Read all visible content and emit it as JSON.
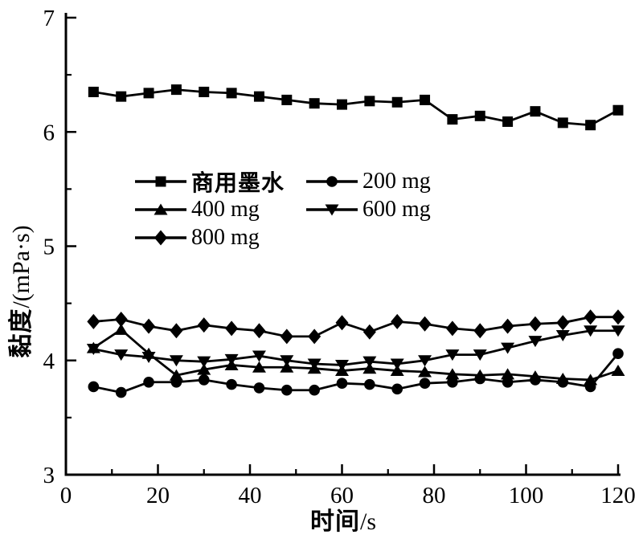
{
  "chart_data": {
    "type": "line",
    "xlabel": "时间/s",
    "ylabel": "黏度/(mPa·s)",
    "xlabel_parts": {
      "cjk": "时间",
      "rest": "/s"
    },
    "ylabel_parts": {
      "cjk": "黏度",
      "rest": "/(mPa·s)"
    },
    "xlim": [
      0,
      120
    ],
    "ylim": [
      3,
      7
    ],
    "x_ticks": [
      0,
      20,
      40,
      60,
      80,
      100,
      120
    ],
    "y_ticks": [
      3,
      4,
      5,
      6,
      7
    ],
    "x_minor_ticks": [
      10,
      30,
      50,
      70,
      90,
      110
    ],
    "y_minor_ticks": [
      3.5,
      4.5,
      5.5,
      6.5
    ],
    "grid": "off",
    "legend_position": "inside-upper-left",
    "colors": {
      "line": "#000000",
      "background": "#ffffff"
    },
    "x": [
      6,
      12,
      18,
      24,
      30,
      36,
      42,
      48,
      54,
      60,
      66,
      72,
      78,
      84,
      90,
      96,
      102,
      108,
      114,
      120
    ],
    "series": [
      {
        "name": "商用墨水",
        "marker": "square",
        "values": [
          6.35,
          6.31,
          6.34,
          6.37,
          6.35,
          6.34,
          6.31,
          6.28,
          6.25,
          6.24,
          6.27,
          6.26,
          6.28,
          6.11,
          6.14,
          6.09,
          6.18,
          6.08,
          6.06,
          6.19
        ]
      },
      {
        "name": "200 mg",
        "marker": "circle",
        "values": [
          3.77,
          3.72,
          3.81,
          3.81,
          3.83,
          3.79,
          3.76,
          3.74,
          3.74,
          3.8,
          3.79,
          3.75,
          3.8,
          3.81,
          3.84,
          3.81,
          3.83,
          3.81,
          3.77,
          4.06
        ]
      },
      {
        "name": "400 mg",
        "marker": "triangle-up",
        "values": [
          4.11,
          4.27,
          4.06,
          3.87,
          3.92,
          3.96,
          3.94,
          3.94,
          3.93,
          3.91,
          3.93,
          3.91,
          3.9,
          3.88,
          3.87,
          3.88,
          3.86,
          3.84,
          3.83,
          3.91
        ]
      },
      {
        "name": "600 mg",
        "marker": "triangle-down",
        "values": [
          4.1,
          4.05,
          4.03,
          4.0,
          3.99,
          4.01,
          4.04,
          4.0,
          3.97,
          3.96,
          3.99,
          3.97,
          4.0,
          4.05,
          4.05,
          4.11,
          4.17,
          4.22,
          4.26,
          4.26
        ]
      },
      {
        "name": "800 mg",
        "marker": "diamond",
        "values": [
          4.34,
          4.36,
          4.3,
          4.26,
          4.31,
          4.28,
          4.26,
          4.21,
          4.21,
          4.33,
          4.25,
          4.34,
          4.32,
          4.28,
          4.26,
          4.3,
          4.32,
          4.33,
          4.38,
          4.38
        ]
      }
    ]
  }
}
